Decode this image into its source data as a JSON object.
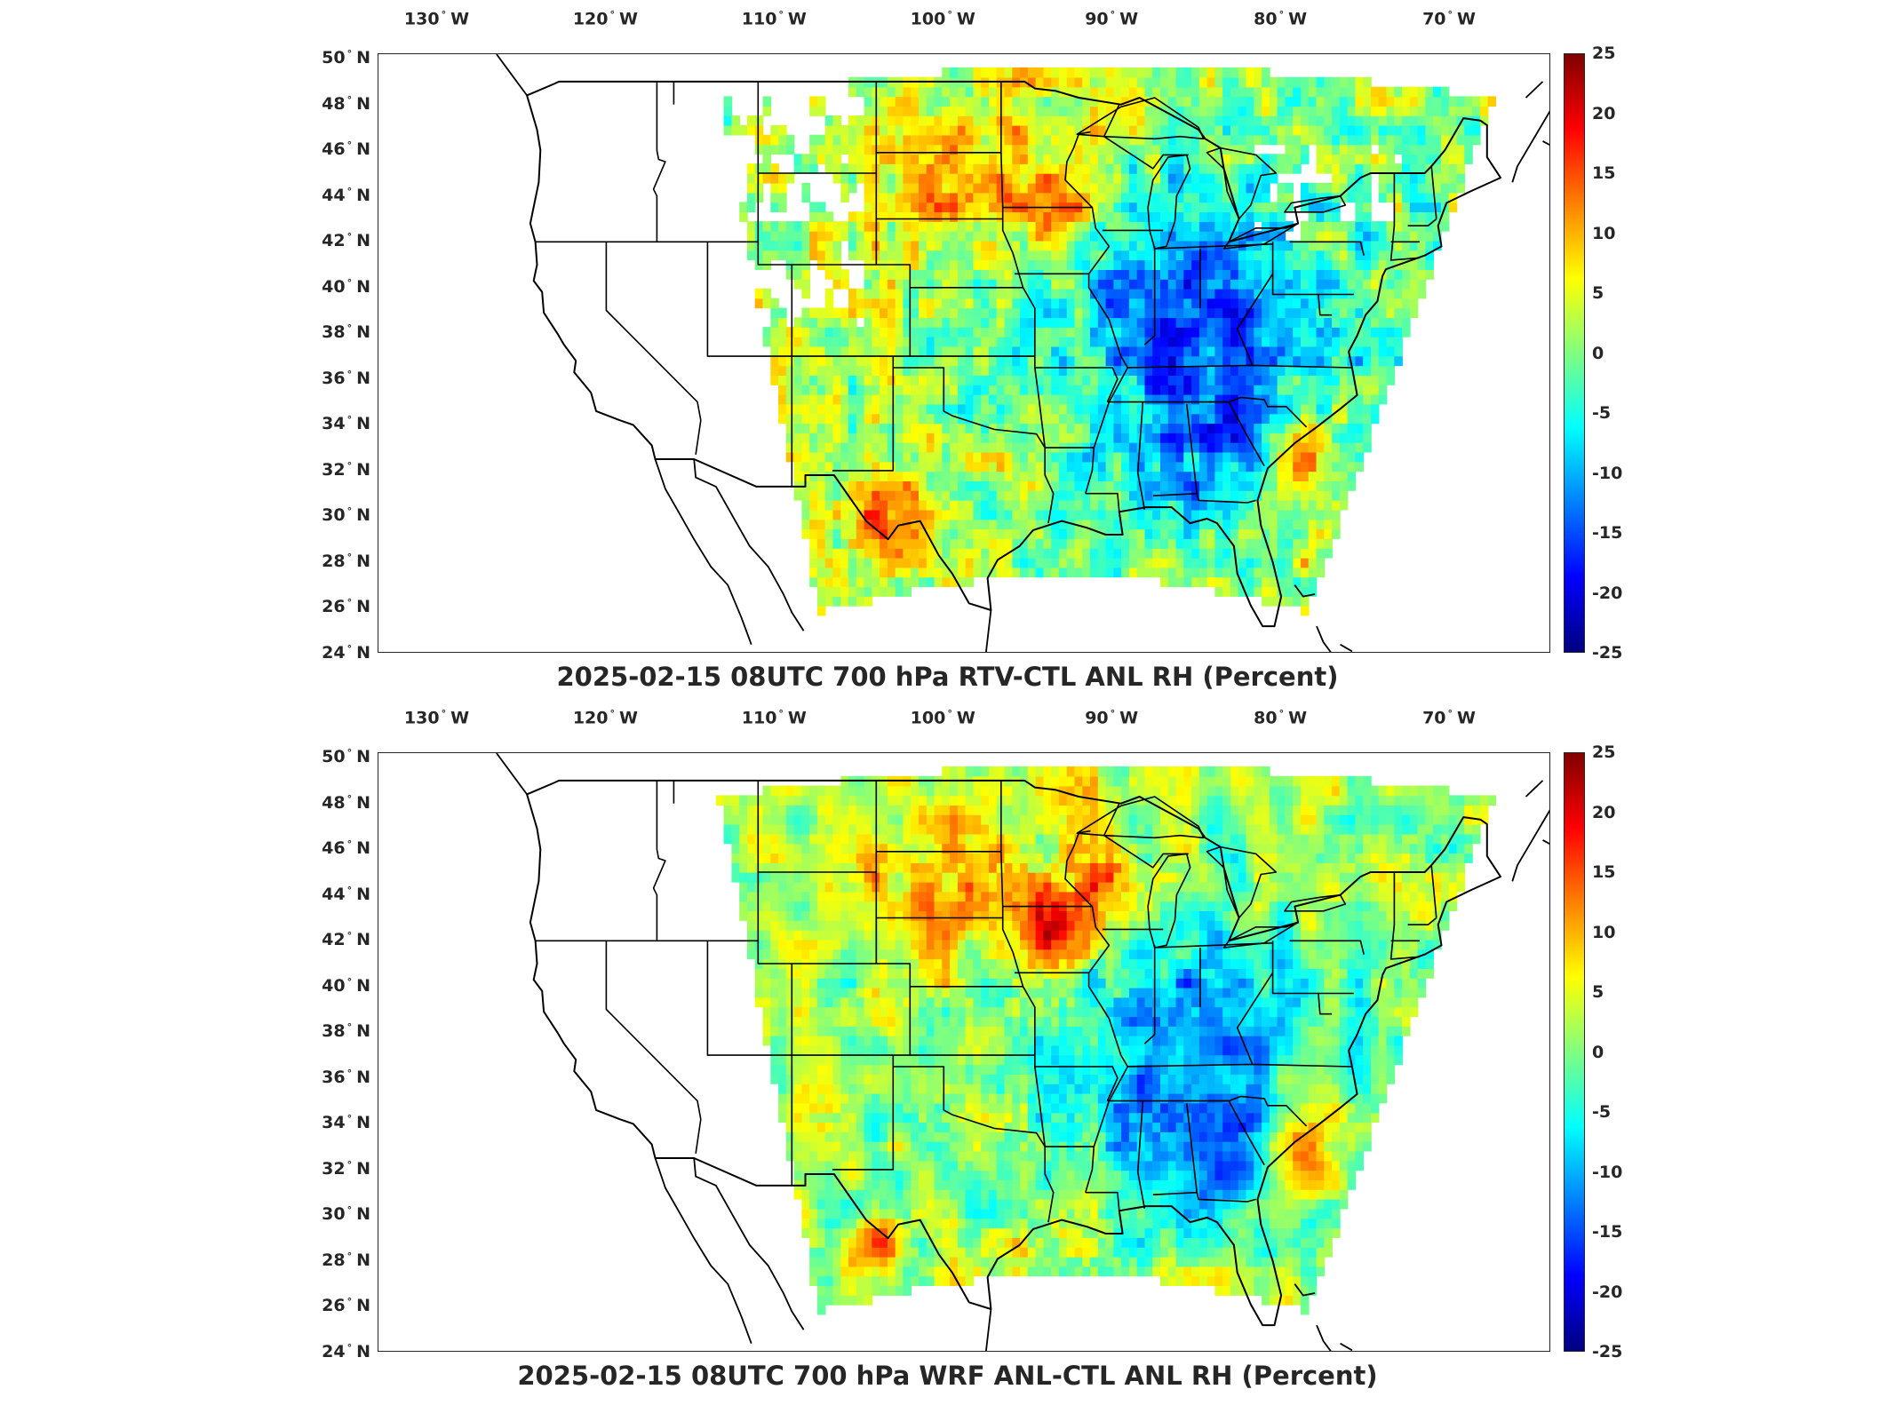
{
  "panels": [
    {
      "title": "2025-02-15 08UTC 700 hPa RTV-CTL ANL RH (Percent)",
      "variant": "rtv"
    },
    {
      "title": "2025-02-15 08UTC 700 hPa WRF ANL-CTL ANL RH (Percent)",
      "variant": "wrf"
    }
  ],
  "lon_ticks": [
    {
      "value": "130",
      "hemi": "W"
    },
    {
      "value": "120",
      "hemi": "W"
    },
    {
      "value": "110",
      "hemi": "W"
    },
    {
      "value": "100",
      "hemi": "W"
    },
    {
      "value": "90",
      "hemi": "W"
    },
    {
      "value": "80",
      "hemi": "W"
    },
    {
      "value": "70",
      "hemi": "W"
    }
  ],
  "lat_ticks": [
    {
      "value": "50",
      "hemi": "N"
    },
    {
      "value": "48",
      "hemi": "N"
    },
    {
      "value": "46",
      "hemi": "N"
    },
    {
      "value": "44",
      "hemi": "N"
    },
    {
      "value": "42",
      "hemi": "N"
    },
    {
      "value": "40",
      "hemi": "N"
    },
    {
      "value": "38",
      "hemi": "N"
    },
    {
      "value": "36",
      "hemi": "N"
    },
    {
      "value": "34",
      "hemi": "N"
    },
    {
      "value": "32",
      "hemi": "N"
    },
    {
      "value": "30",
      "hemi": "N"
    },
    {
      "value": "28",
      "hemi": "N"
    },
    {
      "value": "26",
      "hemi": "N"
    },
    {
      "value": "24",
      "hemi": "N"
    }
  ],
  "colorbar": {
    "ticks": [
      "25",
      "20",
      "15",
      "10",
      "5",
      "0",
      "-5",
      "-10",
      "-15",
      "-20",
      "-25"
    ],
    "colormap": [
      "#800000",
      "#ff0000",
      "#ff8000",
      "#ffff00",
      "#80ff80",
      "#00ffff",
      "#0080ff",
      "#0000ff",
      "#000080"
    ]
  },
  "colors": {
    "land_outline": "#000000",
    "axis": "#262626"
  }
}
